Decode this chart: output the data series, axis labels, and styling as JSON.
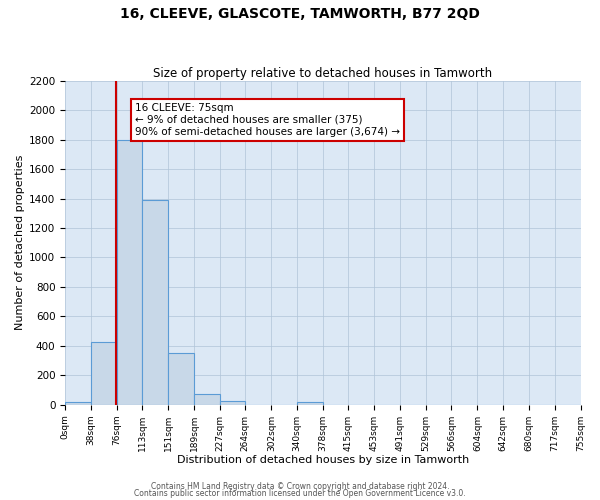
{
  "title": "16, CLEEVE, GLASCOTE, TAMWORTH, B77 2QD",
  "subtitle": "Size of property relative to detached houses in Tamworth",
  "xlabel": "Distribution of detached houses by size in Tamworth",
  "ylabel": "Number of detached properties",
  "bin_edges": [
    0,
    38,
    76,
    113,
    151,
    189,
    227,
    264,
    302,
    340,
    378,
    415,
    453,
    491,
    529,
    566,
    604,
    642,
    680,
    717,
    755
  ],
  "bin_counts": [
    20,
    425,
    1800,
    1390,
    350,
    75,
    25,
    0,
    0,
    20,
    0,
    0,
    0,
    0,
    0,
    0,
    0,
    0,
    0,
    0
  ],
  "bar_facecolor": "#c8d8e8",
  "bar_edgecolor": "#5b9bd5",
  "vline_color": "#cc0000",
  "vline_x": 75,
  "annotation_line1": "16 CLEEVE: 75sqm",
  "annotation_line2": "← 9% of detached houses are smaller (375)",
  "annotation_line3": "90% of semi-detached houses are larger (3,674) →",
  "annotation_box_edgecolor": "#cc0000",
  "annotation_box_facecolor": "#ffffff",
  "ylim": [
    0,
    2200
  ],
  "yticks": [
    0,
    200,
    400,
    600,
    800,
    1000,
    1200,
    1400,
    1600,
    1800,
    2000,
    2200
  ],
  "tick_labels": [
    "0sqm",
    "38sqm",
    "76sqm",
    "113sqm",
    "151sqm",
    "189sqm",
    "227sqm",
    "264sqm",
    "302sqm",
    "340sqm",
    "378sqm",
    "415sqm",
    "453sqm",
    "491sqm",
    "529sqm",
    "566sqm",
    "604sqm",
    "642sqm",
    "680sqm",
    "717sqm",
    "755sqm"
  ],
  "footer_line1": "Contains HM Land Registry data © Crown copyright and database right 2024.",
  "footer_line2": "Contains public sector information licensed under the Open Government Licence v3.0.",
  "background_color": "#ffffff",
  "axes_facecolor": "#dce8f5",
  "grid_color": "#b0c4d8"
}
